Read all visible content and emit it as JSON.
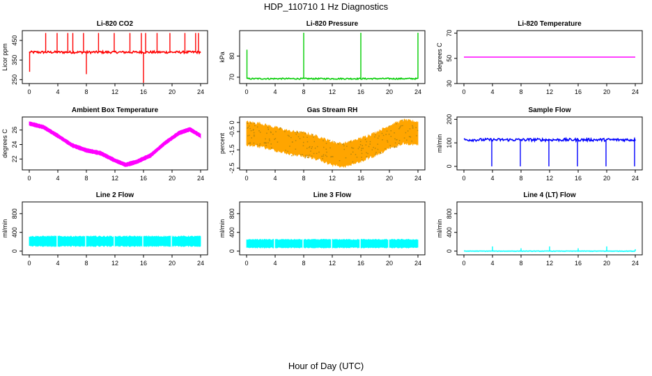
{
  "figure": {
    "title": "HDP_110710  1 Hz Diagnostics",
    "xlabel": "Hour of Day (UTC)"
  },
  "colors": {
    "co2": "#ff0000",
    "pressure": "#00cc00",
    "temperature": "#ff00ff",
    "ambient": "#ff00ff",
    "rh": "#ffa500",
    "rh_overlay": "#b8860b",
    "sample_flow": "#0000ff",
    "line2": "#00ffff",
    "line3": "#00ffff",
    "line4": "#00ffff"
  },
  "chart_data": [
    {
      "type": "line",
      "title": "Li-820 CO2",
      "ylabel": "Licor ppm",
      "xlim": [
        0,
        24
      ],
      "ylim": [
        230,
        500
      ],
      "xticks": [
        0,
        4,
        8,
        12,
        16,
        20,
        24
      ],
      "yticks": [
        250,
        350,
        450
      ],
      "baseline": 390,
      "noise": 6,
      "color_key": "co2",
      "spikes": [
        {
          "x": 2.3,
          "y": 488
        },
        {
          "x": 3.9,
          "y": 488
        },
        {
          "x": 5.4,
          "y": 488
        },
        {
          "x": 6.1,
          "y": 488
        },
        {
          "x": 7.6,
          "y": 488
        },
        {
          "x": 8.0,
          "y": 278
        },
        {
          "x": 9.7,
          "y": 488
        },
        {
          "x": 11.9,
          "y": 488
        },
        {
          "x": 14.1,
          "y": 488
        },
        {
          "x": 15.7,
          "y": 488
        },
        {
          "x": 16.0,
          "y": 232
        },
        {
          "x": 16.3,
          "y": 488
        },
        {
          "x": 17.9,
          "y": 488
        },
        {
          "x": 19.7,
          "y": 488
        },
        {
          "x": 21.8,
          "y": 488
        },
        {
          "x": 23.3,
          "y": 488
        },
        {
          "x": 23.7,
          "y": 488
        },
        {
          "x": 0.05,
          "y": 290
        }
      ]
    },
    {
      "type": "line",
      "title": "Li-820 Pressure",
      "ylabel": "kPa",
      "xlim": [
        0,
        24
      ],
      "ylim": [
        67,
        92
      ],
      "xticks": [
        0,
        4,
        8,
        12,
        16,
        20,
        24
      ],
      "yticks": [
        70,
        80
      ],
      "baseline": 69.3,
      "noise": 0.3,
      "color_key": "pressure",
      "spikes": [
        {
          "x": 0.05,
          "y": 83
        },
        {
          "x": 8.0,
          "y": 91
        },
        {
          "x": 16.0,
          "y": 91
        },
        {
          "x": 24.0,
          "y": 91
        }
      ]
    },
    {
      "type": "line",
      "title": "Li-820 Temperature",
      "ylabel": "degrees C",
      "xlim": [
        0,
        24
      ],
      "ylim": [
        30,
        72
      ],
      "xticks": [
        0,
        4,
        8,
        12,
        16,
        20,
        24
      ],
      "yticks": [
        30,
        50,
        70
      ],
      "baseline": 51,
      "noise": 0,
      "color_key": "temperature",
      "spikes": []
    },
    {
      "type": "area",
      "title": "Ambient Box Temperature",
      "ylabel": "degrees C",
      "xlim": [
        0,
        24
      ],
      "ylim": [
        20.5,
        27.8
      ],
      "xticks": [
        0,
        4,
        8,
        12,
        16,
        20,
        24
      ],
      "yticks": [
        22,
        24,
        26
      ],
      "x": [
        0,
        2,
        4,
        6,
        8,
        10,
        12,
        13.5,
        15,
        17,
        19,
        21,
        22.5,
        24
      ],
      "y": [
        26.9,
        26.4,
        25.2,
        23.9,
        23.2,
        22.8,
        21.8,
        21.2,
        21.6,
        22.5,
        24.2,
        25.6,
        26.1,
        25.2
      ],
      "band": 0.6,
      "color_key": "ambient"
    },
    {
      "type": "area",
      "title": "Gas Stream RH",
      "ylabel": "percent",
      "xlim": [
        0,
        24
      ],
      "ylim": [
        -2.6,
        0.3
      ],
      "xticks": [
        0,
        4,
        8,
        12,
        16,
        20,
        24
      ],
      "yticks": [
        -2.5,
        -1.5,
        -0.5,
        0.0
      ],
      "x": [
        0,
        2,
        4,
        6,
        8,
        10,
        12,
        13.5,
        16,
        18,
        20,
        22,
        24
      ],
      "y": [
        -0.6,
        -0.7,
        -0.9,
        -1.1,
        -1.2,
        -1.4,
        -1.7,
        -1.8,
        -1.5,
        -1.2,
        -0.8,
        -0.5,
        -0.6
      ],
      "band": 1.4,
      "color_key": "rh"
    },
    {
      "type": "line",
      "title": "Sample Flow",
      "ylabel": "ml/min",
      "xlim": [
        0,
        24
      ],
      "ylim": [
        -15,
        210
      ],
      "xticks": [
        0,
        4,
        8,
        12,
        16,
        20,
        24
      ],
      "yticks": [
        0,
        100,
        200
      ],
      "baseline": 113,
      "noise": 6,
      "color_key": "sample_flow",
      "spikes": [
        {
          "x": 3.9,
          "y": 0
        },
        {
          "x": 7.9,
          "y": 0
        },
        {
          "x": 11.9,
          "y": 0
        },
        {
          "x": 15.9,
          "y": 0
        },
        {
          "x": 19.9,
          "y": 0
        },
        {
          "x": 23.9,
          "y": 0
        }
      ]
    },
    {
      "type": "area",
      "title": "Line 2 Flow",
      "ylabel": "ml/min",
      "xlim": [
        0,
        24
      ],
      "ylim": [
        -80,
        1050
      ],
      "xticks": [
        0,
        4,
        8,
        12,
        16,
        20,
        24
      ],
      "yticks": [
        0,
        400,
        800
      ],
      "x": [
        0,
        24
      ],
      "y": [
        210,
        210
      ],
      "band": 230,
      "color_key": "line2",
      "gaps": [
        3.9,
        7.9,
        11.9,
        15.9,
        19.9
      ]
    },
    {
      "type": "area",
      "title": "Line 3 Flow",
      "ylabel": "ml/min",
      "xlim": [
        0,
        24
      ],
      "ylim": [
        -80,
        1050
      ],
      "xticks": [
        0,
        4,
        8,
        12,
        16,
        20,
        24
      ],
      "yticks": [
        0,
        400,
        800
      ],
      "x": [
        0,
        24
      ],
      "y": [
        160,
        160
      ],
      "band": 190,
      "color_key": "line3",
      "gaps": [
        3.9,
        7.9,
        11.9,
        15.9,
        19.9
      ]
    },
    {
      "type": "line",
      "title": "Line 4 (LT) Flow",
      "ylabel": "ml/min",
      "xlim": [
        0,
        24
      ],
      "ylim": [
        -80,
        1050
      ],
      "xticks": [
        0,
        4,
        8,
        12,
        16,
        20,
        24
      ],
      "yticks": [
        0,
        400,
        800
      ],
      "baseline": 0,
      "noise": 4,
      "color_key": "line4",
      "spikes": [
        {
          "x": 4.0,
          "y": 100
        },
        {
          "x": 8.0,
          "y": 60
        },
        {
          "x": 12.0,
          "y": 100
        },
        {
          "x": 16.0,
          "y": 60
        },
        {
          "x": 20.0,
          "y": 100
        },
        {
          "x": 24.0,
          "y": 40
        }
      ]
    }
  ]
}
